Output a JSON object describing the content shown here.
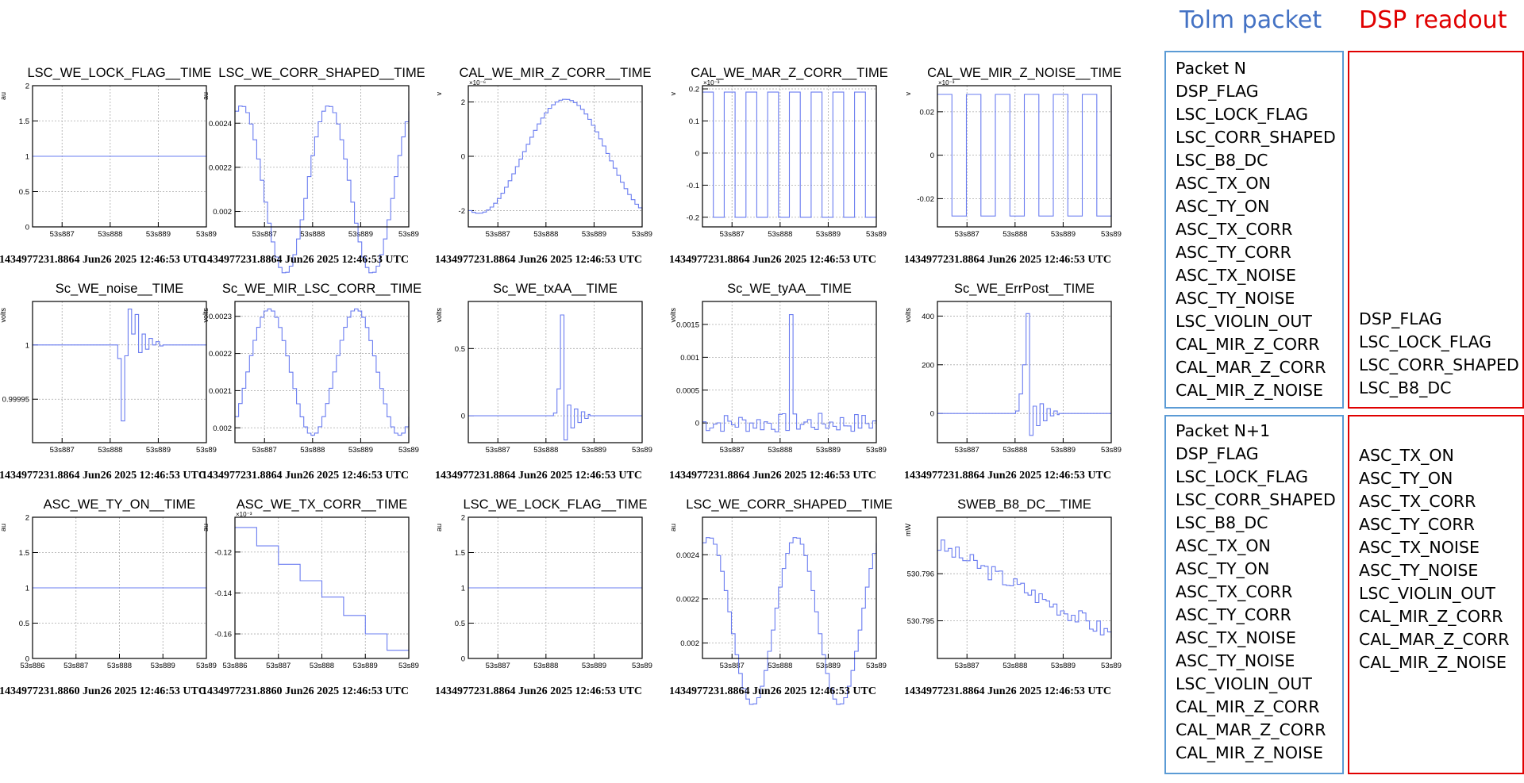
{
  "headers": {
    "tolm": "Tolm packet",
    "dsp": "DSP readout"
  },
  "colors": {
    "tolm": "#4472c4",
    "dsp": "#e00000",
    "trace": "#6a7cf0"
  },
  "boxes": {
    "tolm_n": [
      "Packet N",
      "DSP_FLAG",
      "LSC_LOCK_FLAG",
      "LSC_CORR_SHAPED",
      "LSC_B8_DC",
      "ASC_TX_ON",
      "ASC_TY_ON",
      "ASC_TX_CORR",
      "ASC_TY_CORR",
      "ASC_TX_NOISE",
      "ASC_TY_NOISE",
      "LSC_VIOLIN_OUT",
      "CAL_MIR_Z_CORR",
      "CAL_MAR_Z_CORR",
      "CAL_MIR_Z_NOISE"
    ],
    "tolm_n1": [
      "Packet N+1",
      "DSP_FLAG",
      "LSC_LOCK_FLAG",
      "LSC_CORR_SHAPED",
      "LSC_B8_DC",
      "ASC_TX_ON",
      "ASC_TY_ON",
      "ASC_TX_CORR",
      "ASC_TY_CORR",
      "ASC_TX_NOISE",
      "ASC_TY_NOISE",
      "LSC_VIOLIN_OUT",
      "CAL_MIR_Z_CORR",
      "CAL_MAR_Z_CORR",
      "CAL_MIR_Z_NOISE"
    ],
    "dsp_n": [
      "DSP_FLAG",
      "LSC_LOCK_FLAG",
      "LSC_CORR_SHAPED",
      "LSC_B8_DC"
    ],
    "dsp_n1": [
      "ASC_TX_ON",
      "ASC_TY_ON",
      "ASC_TX_CORR",
      "ASC_TY_CORR",
      "ASC_TX_NOISE",
      "ASC_TY_NOISE",
      "LSC_VIOLIN_OUT",
      "CAL_MIR_Z_CORR",
      "CAL_MAR_Z_CORR",
      "CAL_MIR_Z_NOISE"
    ]
  },
  "chart_data": [
    {
      "type": "line",
      "title": "LSC_WE_LOCK_FLAG__TIME",
      "ylabel": "au",
      "ylim": [
        0,
        2
      ],
      "yticks": [
        "0",
        "0.5",
        "1",
        "1.5",
        "2"
      ],
      "ytick_vals": [
        0,
        0.5,
        1,
        1.5,
        2
      ],
      "xticks": [
        "53s887",
        "53s888",
        "53s889",
        "53s89"
      ],
      "caption": "1434977231.8864 Jun26 2025 12:46:53 UTC",
      "kind": "flat",
      "level": 1
    },
    {
      "type": "line",
      "title": "LSC_WE_CORR_SHAPED__TIME",
      "ylabel": "au",
      "ylim": [
        0.00193,
        0.00257
      ],
      "yticks": [
        "0.002",
        "0.0022",
        "0.0024"
      ],
      "ytick_vals": [
        0.002,
        0.0022,
        0.0024
      ],
      "xticks": [
        "53s887",
        "53s888",
        "53s889",
        "53s89"
      ],
      "caption": "1434977231.8864 Jun26 2025 12:46:53 UTC",
      "kind": "sine",
      "mid": 0.0021,
      "amp": 0.00038,
      "cycles": 2.0,
      "phase": 1.2,
      "drift": 0.0
    },
    {
      "type": "line",
      "title": "CAL_WE_MIR_Z_CORR__TIME",
      "ylabel": "v",
      "exponent": "×10⁻⁶",
      "ylim": [
        -2.6,
        2.6
      ],
      "yticks": [
        "-2",
        "0",
        "2"
      ],
      "ytick_vals": [
        -2,
        0,
        2
      ],
      "xticks": [
        "53s887",
        "53s888",
        "53s889",
        "53s89"
      ],
      "caption": "1434977231.8864 Jun26 2025 12:46:53 UTC",
      "kind": "sine",
      "mid": 0,
      "amp": 2.1,
      "cycles": 1.0,
      "phase": 4.4,
      "drift": 0
    },
    {
      "type": "line",
      "title": "CAL_WE_MAR_Z_CORR__TIME",
      "ylabel": "v",
      "exponent": "×10⁻³",
      "ylim": [
        -0.23,
        0.21
      ],
      "yticks": [
        "-0.2",
        "-0.1",
        "0",
        "0.1",
        "0.2"
      ],
      "ytick_vals": [
        -0.2,
        -0.1,
        0,
        0.1,
        0.2
      ],
      "xticks": [
        "53s887",
        "53s888",
        "53s889",
        "53s89"
      ],
      "caption": "1434977231.8864 Jun26 2025 12:46:53 UTC",
      "kind": "square",
      "hi": 0.19,
      "lo": -0.2,
      "period": 6
    },
    {
      "type": "line",
      "title": "CAL_WE_MIR_Z_NOISE__TIME",
      "ylabel": "v",
      "exponent": "×10⁻³",
      "ylim": [
        -0.033,
        0.032
      ],
      "yticks": [
        "-0.02",
        "0",
        "0.02"
      ],
      "ytick_vals": [
        -0.02,
        0,
        0.02
      ],
      "xticks": [
        "53s887",
        "53s888",
        "53s889",
        "53s89"
      ],
      "caption": "1434977231.8864 Jun26 2025 12:46:53 UTC",
      "kind": "square",
      "hi": 0.028,
      "lo": -0.028,
      "period": 8
    },
    {
      "type": "line",
      "title": "Sc_WE_noise__TIME",
      "ylabel": "volts",
      "ylim": [
        0.99991,
        1.00004
      ],
      "yticks": [
        "0.99995",
        "1"
      ],
      "ytick_vals": [
        0.99995,
        1
      ],
      "xticks": [
        "53s887",
        "53s888",
        "53s889",
        "53s89"
      ],
      "caption": "1434977231.8864 Jun26 2025 12:46:53 UTC",
      "kind": "spike",
      "base": 1,
      "spike": [
        [
          0.49,
          0.9999875
        ],
        [
          0.51,
          0.99993
        ],
        [
          0.53,
          0.99999
        ],
        [
          0.55,
          1.000033
        ],
        [
          0.57,
          1.00001
        ],
        [
          0.59,
          1.000028
        ],
        [
          0.61,
          0.999993
        ],
        [
          0.63,
          1.00001
        ],
        [
          0.65,
          0.999996
        ],
        [
          0.67,
          1.000006
        ],
        [
          0.69,
          1.0
        ],
        [
          0.71,
          1.000003
        ],
        [
          0.73,
          0.999999
        ]
      ]
    },
    {
      "type": "line",
      "title": "Sc_WE_MIR_LSC_CORR__TIME",
      "ylabel": "volts",
      "ylim": [
        0.00196,
        0.00234
      ],
      "yticks": [
        "0.002",
        "0.0021",
        "0.0022",
        "0.0023"
      ],
      "ytick_vals": [
        0.002,
        0.0021,
        0.0022,
        0.0023
      ],
      "xticks": [
        "53s887",
        "53s888",
        "53s889",
        "53s89"
      ],
      "caption": "1434977231.8864 Jun26 2025 12:46:53 UTC",
      "kind": "sine",
      "mid": 0.00215,
      "amp": 0.00017,
      "cycles": 2.0,
      "phase": 5.5,
      "drift": 0
    },
    {
      "type": "line",
      "title": "Sc_WE_txAA__TIME",
      "ylabel": "volts",
      "ylim": [
        -0.2,
        0.85
      ],
      "yticks": [
        "0",
        "0.5"
      ],
      "ytick_vals": [
        0,
        0.5
      ],
      "xticks": [
        "53s887",
        "53s888",
        "53s889",
        "53s89"
      ],
      "caption": "1434977231.8864 Jun26 2025 12:46:53 UTC",
      "kind": "spike",
      "base": 0,
      "spike": [
        [
          0.49,
          0.02
        ],
        [
          0.51,
          0.2
        ],
        [
          0.53,
          0.75
        ],
        [
          0.55,
          -0.18
        ],
        [
          0.57,
          0.08
        ],
        [
          0.59,
          -0.09
        ],
        [
          0.61,
          0.05
        ],
        [
          0.63,
          -0.05
        ],
        [
          0.65,
          0.03
        ],
        [
          0.67,
          -0.02
        ],
        [
          0.69,
          0.01
        ]
      ]
    },
    {
      "type": "line",
      "title": "Sc_WE_tyAA__TIME",
      "ylabel": "volts",
      "ylim": [
        -0.0003,
        0.00185
      ],
      "yticks": [
        "0",
        "0.0005",
        "0.001",
        "0.0015"
      ],
      "ytick_vals": [
        0,
        0.0005,
        0.001,
        0.0015
      ],
      "xticks": [
        "53s887",
        "53s888",
        "53s889",
        "53s89"
      ],
      "caption": "1434977231.8864 Jun26 2025 12:46:53 UTC",
      "kind": "noise",
      "seed": 7,
      "amp": 0.00015,
      "base": 0,
      "peak": [
        0.5,
        0.00165
      ]
    },
    {
      "type": "line",
      "title": "Sc_WE_ErrPost__TIME",
      "ylabel": "volts",
      "ylim": [
        -120,
        460
      ],
      "yticks": [
        "0",
        "200",
        "400"
      ],
      "ytick_vals": [
        0,
        200,
        400
      ],
      "xticks": [
        "53s887",
        "53s888",
        "53s889",
        "53s89"
      ],
      "caption": "1434977231.8864 Jun26 2025 12:46:53 UTC",
      "kind": "spike",
      "base": 0,
      "spike": [
        [
          0.45,
          10
        ],
        [
          0.47,
          80
        ],
        [
          0.49,
          200
        ],
        [
          0.51,
          410
        ],
        [
          0.53,
          -90
        ],
        [
          0.55,
          30
        ],
        [
          0.57,
          -50
        ],
        [
          0.59,
          40
        ],
        [
          0.61,
          -30
        ],
        [
          0.63,
          20
        ],
        [
          0.65,
          -10
        ],
        [
          0.67,
          10
        ],
        [
          0.69,
          -5
        ]
      ]
    },
    {
      "type": "line",
      "title": "ASC_WE_TY_ON__TIME",
      "ylabel": "au",
      "ylim": [
        0,
        2
      ],
      "yticks": [
        "0",
        "0.5",
        "1",
        "1.5",
        "2"
      ],
      "ytick_vals": [
        0,
        0.5,
        1,
        1.5,
        2
      ],
      "xticks": [
        "53s886",
        "53s887",
        "53s888",
        "53s889",
        "53s89"
      ],
      "caption": "1434977231.8860 Jun26 2025 12:46:53 UTC",
      "kind": "flat",
      "level": 1
    },
    {
      "type": "line",
      "title": "ASC_WE_TX_CORR__TIME",
      "ylabel": "au",
      "exponent": "×10⁻³",
      "ylim": [
        -0.172,
        -0.103
      ],
      "yticks": [
        "-0.12",
        "-0.14",
        "-0.16"
      ],
      "ytick_vals": [
        -0.12,
        -0.14,
        -0.16
      ],
      "xticks": [
        "53s886",
        "53s887",
        "53s888",
        "53s889",
        "53s89"
      ],
      "caption": "1434977231.8860 Jun26 2025 12:46:53 UTC",
      "kind": "stairs",
      "steps": [
        -0.108,
        -0.117,
        -0.126,
        -0.134,
        -0.142,
        -0.151,
        -0.16,
        -0.168
      ]
    },
    {
      "type": "line",
      "title": "LSC_WE_LOCK_FLAG__TIME",
      "ylabel": "au",
      "ylim": [
        0,
        2
      ],
      "yticks": [
        "0",
        "0.5",
        "1",
        "1.5",
        "2"
      ],
      "ytick_vals": [
        0,
        0.5,
        1,
        1.5,
        2
      ],
      "xticks": [
        "53s887",
        "53s888",
        "53s889",
        "53s89"
      ],
      "caption": "1434977231.8864 Jun26 2025 12:46:53 UTC",
      "kind": "flat",
      "level": 1
    },
    {
      "type": "line",
      "title": "LSC_WE_CORR_SHAPED__TIME",
      "ylabel": "au",
      "ylim": [
        0.00193,
        0.00257
      ],
      "yticks": [
        "0.002",
        "0.0022",
        "0.0024"
      ],
      "ytick_vals": [
        0.002,
        0.0022,
        0.0024
      ],
      "xticks": [
        "53s887",
        "53s888",
        "53s889",
        "53s89"
      ],
      "caption": "1434977231.8864 Jun26 2025 12:46:53 UTC",
      "kind": "sine",
      "mid": 0.0021,
      "amp": 0.00038,
      "cycles": 2.0,
      "phase": 1.2,
      "drift": 0.0
    },
    {
      "type": "line",
      "title": "SWEB_B8_DC__TIME",
      "ylabel": "mW",
      "ylim": [
        530.7942,
        530.7972
      ],
      "yticks": [
        "530.795",
        "530.796"
      ],
      "ytick_vals": [
        530.795,
        530.796
      ],
      "xticks": [
        "53s887",
        "53s888",
        "53s889",
        "53s89"
      ],
      "caption": "1434977231.8864 Jun26 2025 12:46:53 UTC",
      "kind": "noise",
      "seed": 3,
      "amp": 0.00018,
      "base": 530.7966,
      "slope": -0.0019,
      "peak": null
    }
  ]
}
